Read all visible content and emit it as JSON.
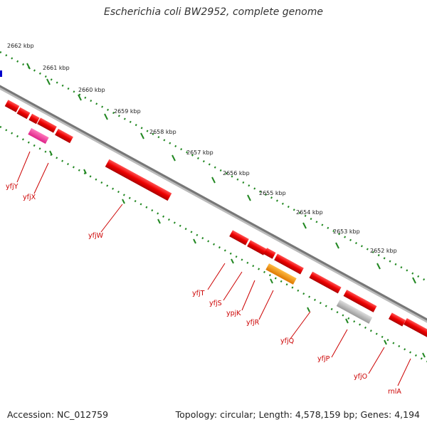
{
  "title": "Escherichia coli BW2952, complete genome",
  "footer": {
    "accession": "Accession: NC_012759",
    "topology": "Topology: circular; Length: 4,578,159 bp; Genes: 4,194"
  },
  "colors": {
    "gene": "#ee0000",
    "gene_pink": "#ff3399",
    "gene_orange": "#ff9900",
    "gene_gray": "#bbbbbb",
    "backbone": "#888888",
    "ruler": "#228822",
    "label": "#cc0000"
  },
  "scale_labels": [
    "2662 kbp",
    "2661 kbp",
    "2660 kbp",
    "2659 kbp",
    "2658 kbp",
    "2657 kbp",
    "2656 kbp",
    "2655 kbp",
    "2654 kbp",
    "2653 kbp",
    "2652 kbp"
  ],
  "gene_labels": [
    "yfjY",
    "yfjX",
    "yfjW",
    "yfjT",
    "yfjS",
    "ypjK",
    "yfjR",
    "yfjQ",
    "yfjP",
    "yfjO",
    "rnlA"
  ]
}
